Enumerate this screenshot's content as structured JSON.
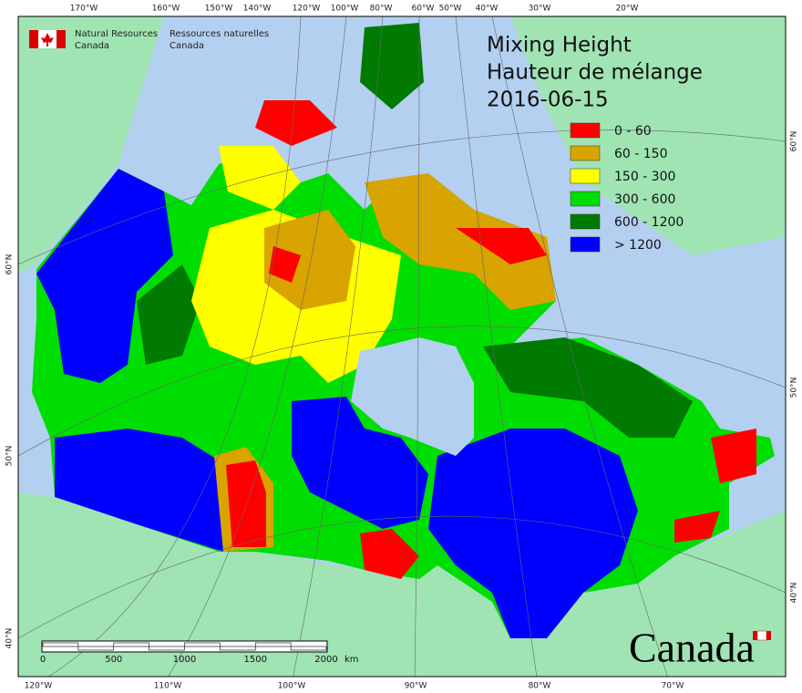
{
  "header": {
    "org_en": [
      "Natural Resources",
      "Canada"
    ],
    "org_fr": [
      "Ressources naturelles",
      "Canada"
    ]
  },
  "title": [
    "Mixing Height",
    "Hauteur de mélange",
    "2016-06-15"
  ],
  "legend": [
    {
      "label": "0 - 60",
      "color": "#ff0000"
    },
    {
      "label": "60 - 150",
      "color": "#d9a300"
    },
    {
      "label": "150 - 300",
      "color": "#ffff00"
    },
    {
      "label": "300 - 600",
      "color": "#00dd00"
    },
    {
      "label": "600 - 1200",
      "color": "#007a00"
    },
    {
      "label": "> 1200",
      "color": "#0000ff"
    }
  ],
  "graticule": {
    "top": [
      "170°W",
      "160°W",
      "150°W",
      "140°W",
      "120°W",
      "100°W",
      "80°W",
      "60°W",
      "50°W",
      "40°W",
      "30°W",
      "20°W"
    ],
    "bottom": [
      "120°W",
      "110°W",
      "100°W",
      "90°W",
      "80°W",
      "70°W"
    ],
    "left": [
      "60°N",
      "50°N",
      "40°N"
    ],
    "right": [
      "60°N",
      "50°N",
      "40°N"
    ]
  },
  "scale_bar": {
    "labels": [
      "0",
      "500",
      "1000",
      "1500",
      "2000"
    ],
    "unit": "km"
  },
  "wordmark": "Canada"
}
